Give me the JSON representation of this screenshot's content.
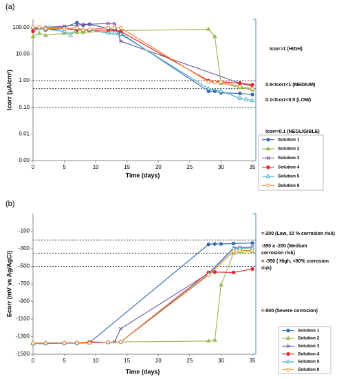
{
  "chart_data": [
    {
      "type": "line",
      "panel_label": "(a)",
      "x_label": "Time (days)",
      "y_label": "Icorr (µA/cm²)",
      "log_y": true,
      "xlim": [
        0,
        35
      ],
      "xticks": [
        0,
        5,
        10,
        15,
        20,
        25,
        30,
        35
      ],
      "ylim": [
        0.001,
        200
      ],
      "yticks": [
        {
          "value": 0.001,
          "label": "0.00"
        },
        {
          "value": 0.01,
          "label": "0.01"
        },
        {
          "value": 0.1,
          "label": "0.10"
        },
        {
          "value": 1,
          "label": "1.00"
        },
        {
          "value": 10,
          "label": "10.00"
        },
        {
          "value": 100,
          "label": "100.00"
        }
      ],
      "ref_lines": [
        1,
        0.5,
        0.1
      ],
      "annotations": [
        "Icorr>1   (HIGH)",
        "0.5<Icorr<1   (MEDIUM)",
        "0.1<Icorr<0.5   (LOW)",
        "Icorr<0.1   (NEGLIGIBLE)"
      ],
      "series": [
        {
          "name": "Solution 1",
          "color": "#3a6cb0",
          "marker": "circle",
          "x": [
            0,
            1,
            2,
            5,
            7,
            8,
            9,
            12,
            13,
            14,
            28,
            29,
            30,
            33,
            35
          ],
          "values": [
            100,
            95,
            90,
            100,
            150,
            120,
            130,
            90,
            80,
            60,
            0.4,
            0.4,
            0.35,
            0.33,
            0.3
          ]
        },
        {
          "name": "Solution 2",
          "color": "#9bbb59",
          "marker": "triangle",
          "x": [
            0,
            1,
            2,
            5,
            7,
            8,
            12,
            14,
            28,
            29,
            30,
            33,
            35
          ],
          "values": [
            45,
            60,
            50,
            60,
            65,
            65,
            70,
            75,
            85,
            45,
            0.8,
            0.55,
            0.45
          ]
        },
        {
          "name": "Solution 3",
          "color": "#7a5ca8",
          "marker": "cross",
          "x": [
            0,
            1,
            2,
            5,
            7,
            8,
            9,
            12,
            13,
            14,
            33,
            35
          ],
          "values": [
            90,
            90,
            100,
            110,
            120,
            130,
            130,
            140,
            140,
            30,
            0.8,
            0.6
          ]
        },
        {
          "name": "Solution 4",
          "color": "#e3262a",
          "marker": "circle",
          "x": [
            0,
            1,
            2,
            5,
            7,
            8,
            9,
            12,
            14,
            28,
            30,
            33,
            35
          ],
          "values": [
            70,
            100,
            80,
            90,
            80,
            80,
            75,
            80,
            70,
            1,
            0.9,
            0.8,
            0.7
          ]
        },
        {
          "name": "Solution 5",
          "color": "#4bacc6",
          "marker": "open-triangle",
          "x": [
            0,
            1,
            2,
            5,
            6,
            7,
            8,
            9,
            12,
            13,
            14,
            28,
            30,
            33,
            34,
            35
          ],
          "values": [
            100,
            90,
            85,
            70,
            50,
            90,
            80,
            80,
            60,
            60,
            55,
            0.5,
            0.4,
            0.22,
            0.2,
            0.18
          ]
        },
        {
          "name": "Solution 6",
          "color": "#f08c2e",
          "marker": "open-circle",
          "x": [
            0,
            1,
            2,
            5,
            7,
            8,
            9,
            12,
            13,
            14,
            28,
            29,
            30,
            33,
            35
          ],
          "values": [
            100,
            100,
            90,
            90,
            95,
            80,
            85,
            95,
            95,
            95,
            0.9,
            0.85,
            0.9,
            0.6,
            0.5
          ]
        }
      ]
    },
    {
      "type": "line",
      "panel_label": "(b)",
      "x_label": "Time (days)",
      "y_label": "Ecorr (mV vs  Ag/AgCl)",
      "log_y": false,
      "xlim": [
        0,
        35
      ],
      "xticks": [
        0,
        5,
        10,
        15,
        20,
        25,
        30,
        35
      ],
      "ylim": [
        -1500,
        100
      ],
      "yticks": [
        -1500,
        -1300,
        -1100,
        -900,
        -700,
        -500,
        -300,
        -100
      ],
      "ref_lines": [
        -200,
        -350,
        -500
      ],
      "annotations": [
        ">-200  (Low, 10 % corrosion risk)",
        "-350 a -200  (Medium corrosion risk)",
        "< -350 ( High, <90% corrosion risk)",
        "<-500 (Severe corrosion)"
      ],
      "series": [
        {
          "name": "Solution 1",
          "color": "#3a6cb0",
          "marker": "circle",
          "x": [
            0,
            2,
            5,
            7,
            9,
            28,
            29,
            30,
            32,
            35
          ],
          "values": [
            -1380,
            -1380,
            -1375,
            -1375,
            -1370,
            -250,
            -245,
            -245,
            -240,
            -235
          ]
        },
        {
          "name": "Solution 2",
          "color": "#9bbb59",
          "marker": "triangle",
          "x": [
            0,
            2,
            5,
            7,
            9,
            12,
            14,
            28,
            29,
            30,
            32,
            35
          ],
          "values": [
            -1370,
            -1370,
            -1370,
            -1370,
            -1365,
            -1365,
            -1360,
            -1350,
            -1340,
            -710,
            -350,
            -330
          ]
        },
        {
          "name": "Solution 3",
          "color": "#7a5ca8",
          "marker": "cross",
          "x": [
            0,
            2,
            5,
            7,
            9,
            12,
            13,
            14,
            28,
            32,
            33,
            35
          ],
          "values": [
            -1380,
            -1375,
            -1375,
            -1370,
            -1370,
            -1365,
            -1360,
            -1210,
            -580,
            -290,
            -285,
            -280
          ]
        },
        {
          "name": "Solution 4",
          "color": "#e3262a",
          "marker": "circle",
          "x": [
            0,
            2,
            5,
            7,
            9,
            12,
            14,
            28,
            29,
            32,
            35
          ],
          "values": [
            -1375,
            -1375,
            -1370,
            -1370,
            -1360,
            -1365,
            -1360,
            -570,
            -565,
            -570,
            -530
          ]
        },
        {
          "name": "Solution 5",
          "color": "#4bacc6",
          "marker": "open-triangle",
          "x": [
            0,
            2,
            5,
            7,
            9,
            12,
            14,
            28,
            32,
            33,
            35
          ],
          "values": [
            -1380,
            -1375,
            -1375,
            -1370,
            -1370,
            -1365,
            -1360,
            -590,
            -300,
            -295,
            -290
          ]
        },
        {
          "name": "Solution 6",
          "color": "#f08c2e",
          "marker": "open-circle",
          "x": [
            0,
            2,
            5,
            7,
            9,
            12,
            14,
            28,
            32,
            33,
            35
          ],
          "values": [
            -1375,
            -1375,
            -1370,
            -1370,
            -1370,
            -1365,
            -1360,
            -600,
            -330,
            -320,
            -320
          ]
        }
      ]
    }
  ]
}
